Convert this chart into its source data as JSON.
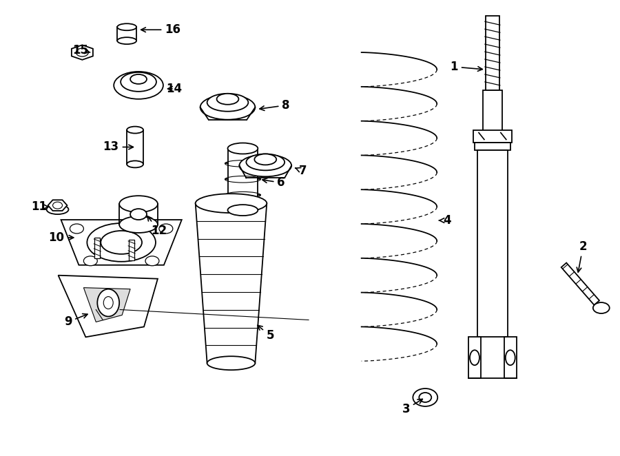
{
  "bg_color": "#ffffff",
  "line_color": "#000000",
  "lw": 1.3,
  "fig_width": 9.0,
  "fig_height": 6.62
}
